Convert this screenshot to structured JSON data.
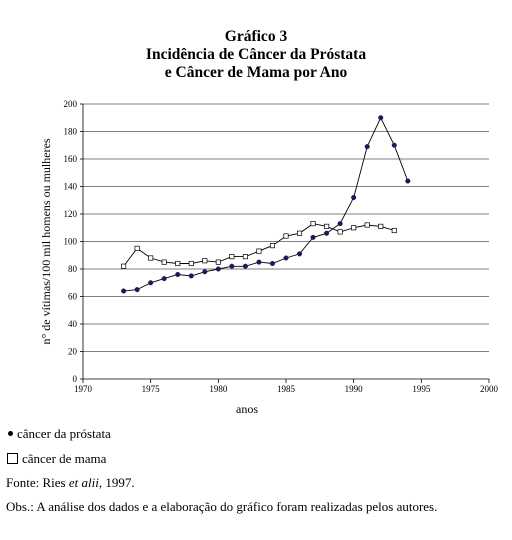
{
  "chart_title": {
    "line1": "Gráfico 3",
    "line2": "Incidência de Câncer da Próstata",
    "line3": "e Câncer de Mama por Ano"
  },
  "chart_data": {
    "type": "line",
    "xlabel": "anos",
    "ylabel": "n° de vítimas/100 mil homens ou mulheres",
    "xlim": [
      1970,
      2000
    ],
    "ylim": [
      0,
      200
    ],
    "x_ticks": [
      "1970",
      "1975",
      "1980",
      "1985",
      "1990",
      "1995",
      "2000"
    ],
    "y_ticks": [
      "0",
      "20",
      "40",
      "60",
      "80",
      "100",
      "120",
      "140",
      "160",
      "180",
      "200"
    ],
    "grid": "horizontal",
    "series": [
      {
        "name": "câncer da próstata",
        "marker": "filled-dot",
        "color": "#1a1a5e",
        "x": [
          1973,
          1974,
          1975,
          1976,
          1977,
          1978,
          1979,
          1980,
          1981,
          1982,
          1983,
          1984,
          1985,
          1986,
          1987,
          1988,
          1989,
          1990,
          1991,
          1992,
          1993,
          1994
        ],
        "y": [
          64,
          65,
          70,
          73,
          76,
          75,
          78,
          80,
          82,
          82,
          85,
          84,
          88,
          91,
          103,
          106,
          113,
          132,
          169,
          190,
          170,
          144
        ]
      },
      {
        "name": "câncer de mama",
        "marker": "open-square",
        "color": "#000000",
        "x": [
          1973,
          1974,
          1975,
          1976,
          1977,
          1978,
          1979,
          1980,
          1981,
          1982,
          1983,
          1984,
          1985,
          1986,
          1987,
          1988,
          1989,
          1990,
          1991,
          1992,
          1993
        ],
        "y": [
          82,
          95,
          88,
          85,
          84,
          84,
          86,
          85,
          89,
          89,
          93,
          97,
          104,
          106,
          113,
          111,
          107,
          110,
          112,
          111,
          108
        ]
      }
    ]
  },
  "legend": {
    "prostate_label": "câncer da próstata",
    "breast_label": "câncer de mama"
  },
  "source": {
    "prefix": "Fonte: Ries ",
    "italic": "et alii",
    "suffix": ", 1997."
  },
  "note": "Obs.: A análise dos dados e a elaboração do gráfico foram realizadas pelos autores."
}
